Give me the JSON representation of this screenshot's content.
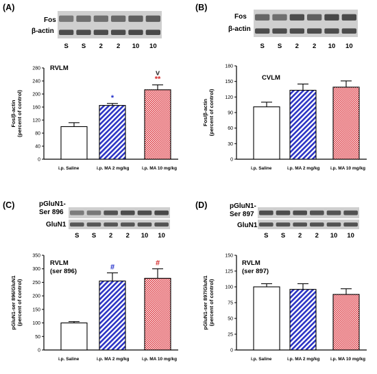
{
  "colors": {
    "saline_fill": "#ffffff",
    "ma2_fill": "#2b33c4",
    "ma10_fill": "#d9232c",
    "ma2_mark": "#1f2cc9",
    "ma10_mark": "#d42a2a",
    "blot_band": "#333333",
    "blot_bg": "#cfcfcf"
  },
  "lanes": [
    "S",
    "S",
    "2",
    "2",
    "10",
    "10"
  ],
  "panels": [
    {
      "label": "(A)",
      "blot_labels": [
        "Fos",
        "β-actin"
      ]
    },
    {
      "label": "(B)",
      "blot_labels": [
        "Fos",
        "β-actin"
      ]
    },
    {
      "label": "(C)",
      "blot_labels": [
        "pGluN1-\nSer 896",
        "GluN1"
      ]
    },
    {
      "label": "(D)",
      "blot_labels": [
        "pGluN1-\nSer 897",
        "GluN1"
      ]
    }
  ],
  "chart_data": [
    {
      "type": "bar",
      "title": "RVLM",
      "ylabel": "Fos/β-actin\n(percent of control)",
      "categories": [
        "i.p. Saline",
        "i.p. MA 2 mg/kg",
        "i.p. MA 10 mg/kg"
      ],
      "values": [
        100,
        165,
        213
      ],
      "errors": [
        12,
        6,
        15
      ],
      "ylim": [
        0,
        280
      ],
      "yticks": [
        "0",
        "40",
        "80",
        "120",
        "160",
        "200",
        "240",
        "280"
      ],
      "annotations": [
        {
          "bar": 1,
          "text": "*",
          "color": "ma2_mark"
        },
        {
          "bar": 2,
          "text": "**",
          "color": "ma10_mark"
        },
        {
          "bar": 2,
          "text": "v",
          "color": "#333333"
        }
      ]
    },
    {
      "type": "bar",
      "title": "CVLM",
      "ylabel": "Fos/β-actin\n(percent of control)",
      "categories": [
        "i.p. Saline",
        "i.p. MA 2 mg/kg",
        "i.p. MA 10 mg/kg"
      ],
      "values": [
        101,
        133,
        139
      ],
      "errors": [
        9,
        12,
        12
      ],
      "ylim": [
        0,
        180
      ],
      "yticks": [
        "0",
        "30",
        "60",
        "90",
        "120",
        "150",
        "180"
      ],
      "annotations": []
    },
    {
      "type": "bar",
      "title": "RVLM\n(ser 896)",
      "ylabel": "pGluN1-ser 896/GluN1\n(percent of control)",
      "categories": [
        "i.p. Saline",
        "i.p. MA 2 mg/kg",
        "i.p. MA 10 mg/kg"
      ],
      "values": [
        100,
        255,
        265
      ],
      "errors": [
        5,
        30,
        35
      ],
      "ylim": [
        0,
        350
      ],
      "yticks": [
        "0",
        "50",
        "100",
        "150",
        "200",
        "250",
        "300",
        "350"
      ],
      "annotations": [
        {
          "bar": 1,
          "text": "#",
          "color": "ma2_mark"
        },
        {
          "bar": 2,
          "text": "#",
          "color": "ma10_mark"
        }
      ]
    },
    {
      "type": "bar",
      "title": "RVLM\n(ser 897)",
      "ylabel": "pGluN1-ser 897/GluN1\n(percent of control)",
      "categories": [
        "i.p. Saline",
        "i.p. MA 2 mg/kg",
        "i.p. MA 10 mg/kg"
      ],
      "values": [
        100,
        96,
        88
      ],
      "errors": [
        5,
        9,
        9
      ],
      "ylim": [
        0,
        150
      ],
      "yticks": [
        "0",
        "25",
        "50",
        "75",
        "100",
        "125",
        "150"
      ],
      "annotations": []
    }
  ]
}
